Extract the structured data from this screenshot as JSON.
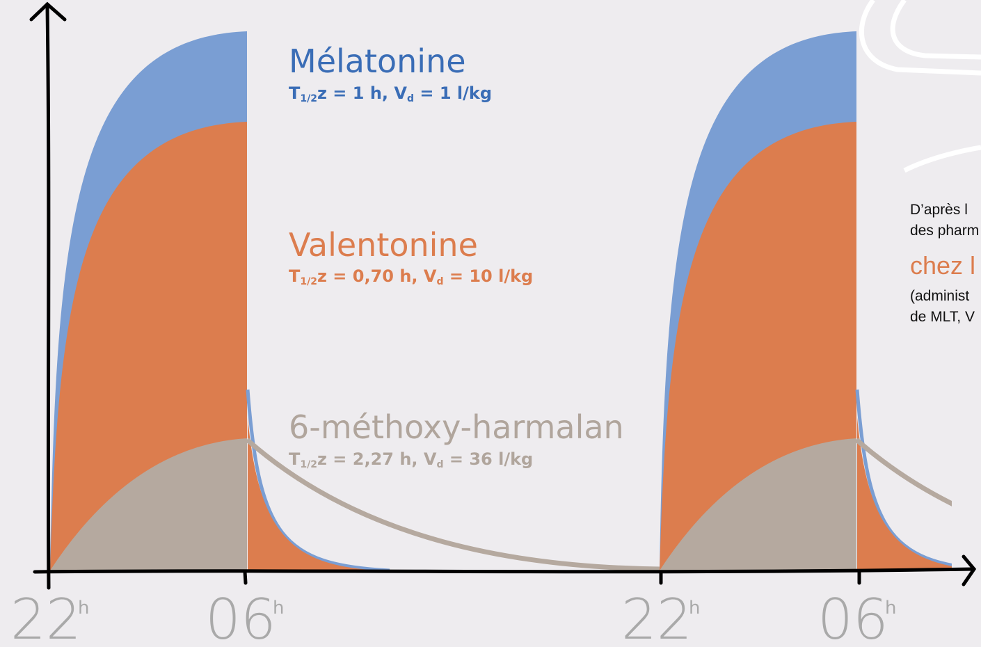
{
  "compounds": [
    {
      "name": "Mélatonine",
      "param": [
        "T",
        "1/2",
        "z = 1 h, V",
        "d",
        " = 1 l/kg"
      ]
    },
    {
      "name": "Valentonine",
      "param": [
        "T",
        "1/2",
        "z = 0,70 h, V",
        "d",
        " = 10 l/kg"
      ]
    },
    {
      "name": "6-méthoxy-harmalan",
      "param": [
        "T",
        "1/2",
        "z = 2,27 h, V",
        "d",
        " = 36 l/kg"
      ]
    }
  ],
  "x_labels": [
    {
      "hour": "22",
      "unit": "h"
    },
    {
      "hour": "06",
      "unit": "h"
    },
    {
      "hour": "22",
      "unit": "h"
    },
    {
      "hour": "06",
      "unit": "h"
    }
  ],
  "side_note": [
    "D’après l",
    "des pharm",
    "chez l",
    "(administ",
    "de MLT, V"
  ]
}
